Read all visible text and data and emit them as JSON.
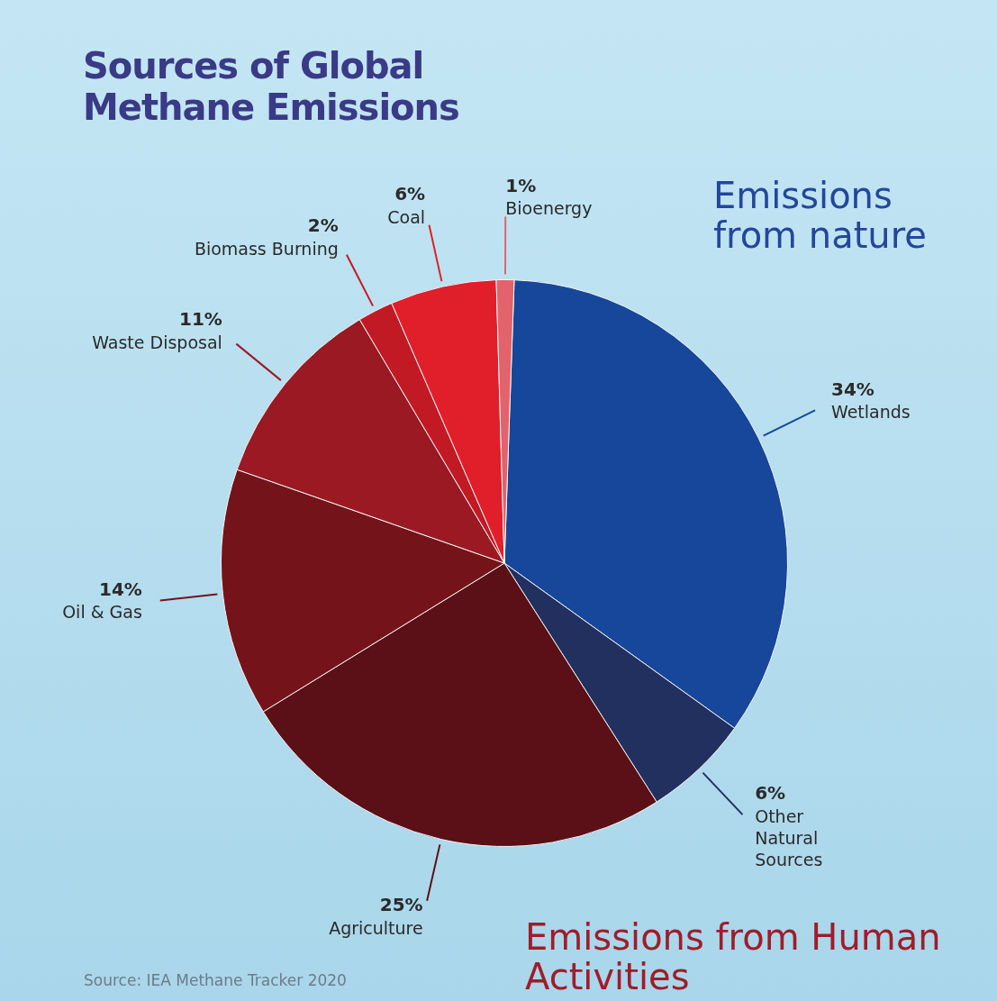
{
  "chart_data": {
    "type": "pie",
    "title": "Sources of Global Methane Emissions",
    "categories": [
      "Wetlands",
      "Other Natural Sources",
      "Agriculture",
      "Oil & Gas",
      "Waste Disposal",
      "Biomass Burning",
      "Coal",
      "Bioenergy"
    ],
    "values": [
      34,
      6,
      25,
      14,
      11,
      2,
      6,
      1
    ],
    "value_labels": [
      "34%",
      "6%",
      "25%",
      "14%",
      "11%",
      "2%",
      "6%",
      "1%"
    ],
    "colors": [
      "#17479a",
      "#22305f",
      "#5a1016",
      "#74141a",
      "#9b1923",
      "#c21a24",
      "#e01f2a",
      "#e2636c"
    ],
    "annotations": [
      "Emissions from nature",
      "Emissions from Human Activities",
      "Source: IEA Methane Tracker 2020"
    ],
    "legend": false
  }
}
